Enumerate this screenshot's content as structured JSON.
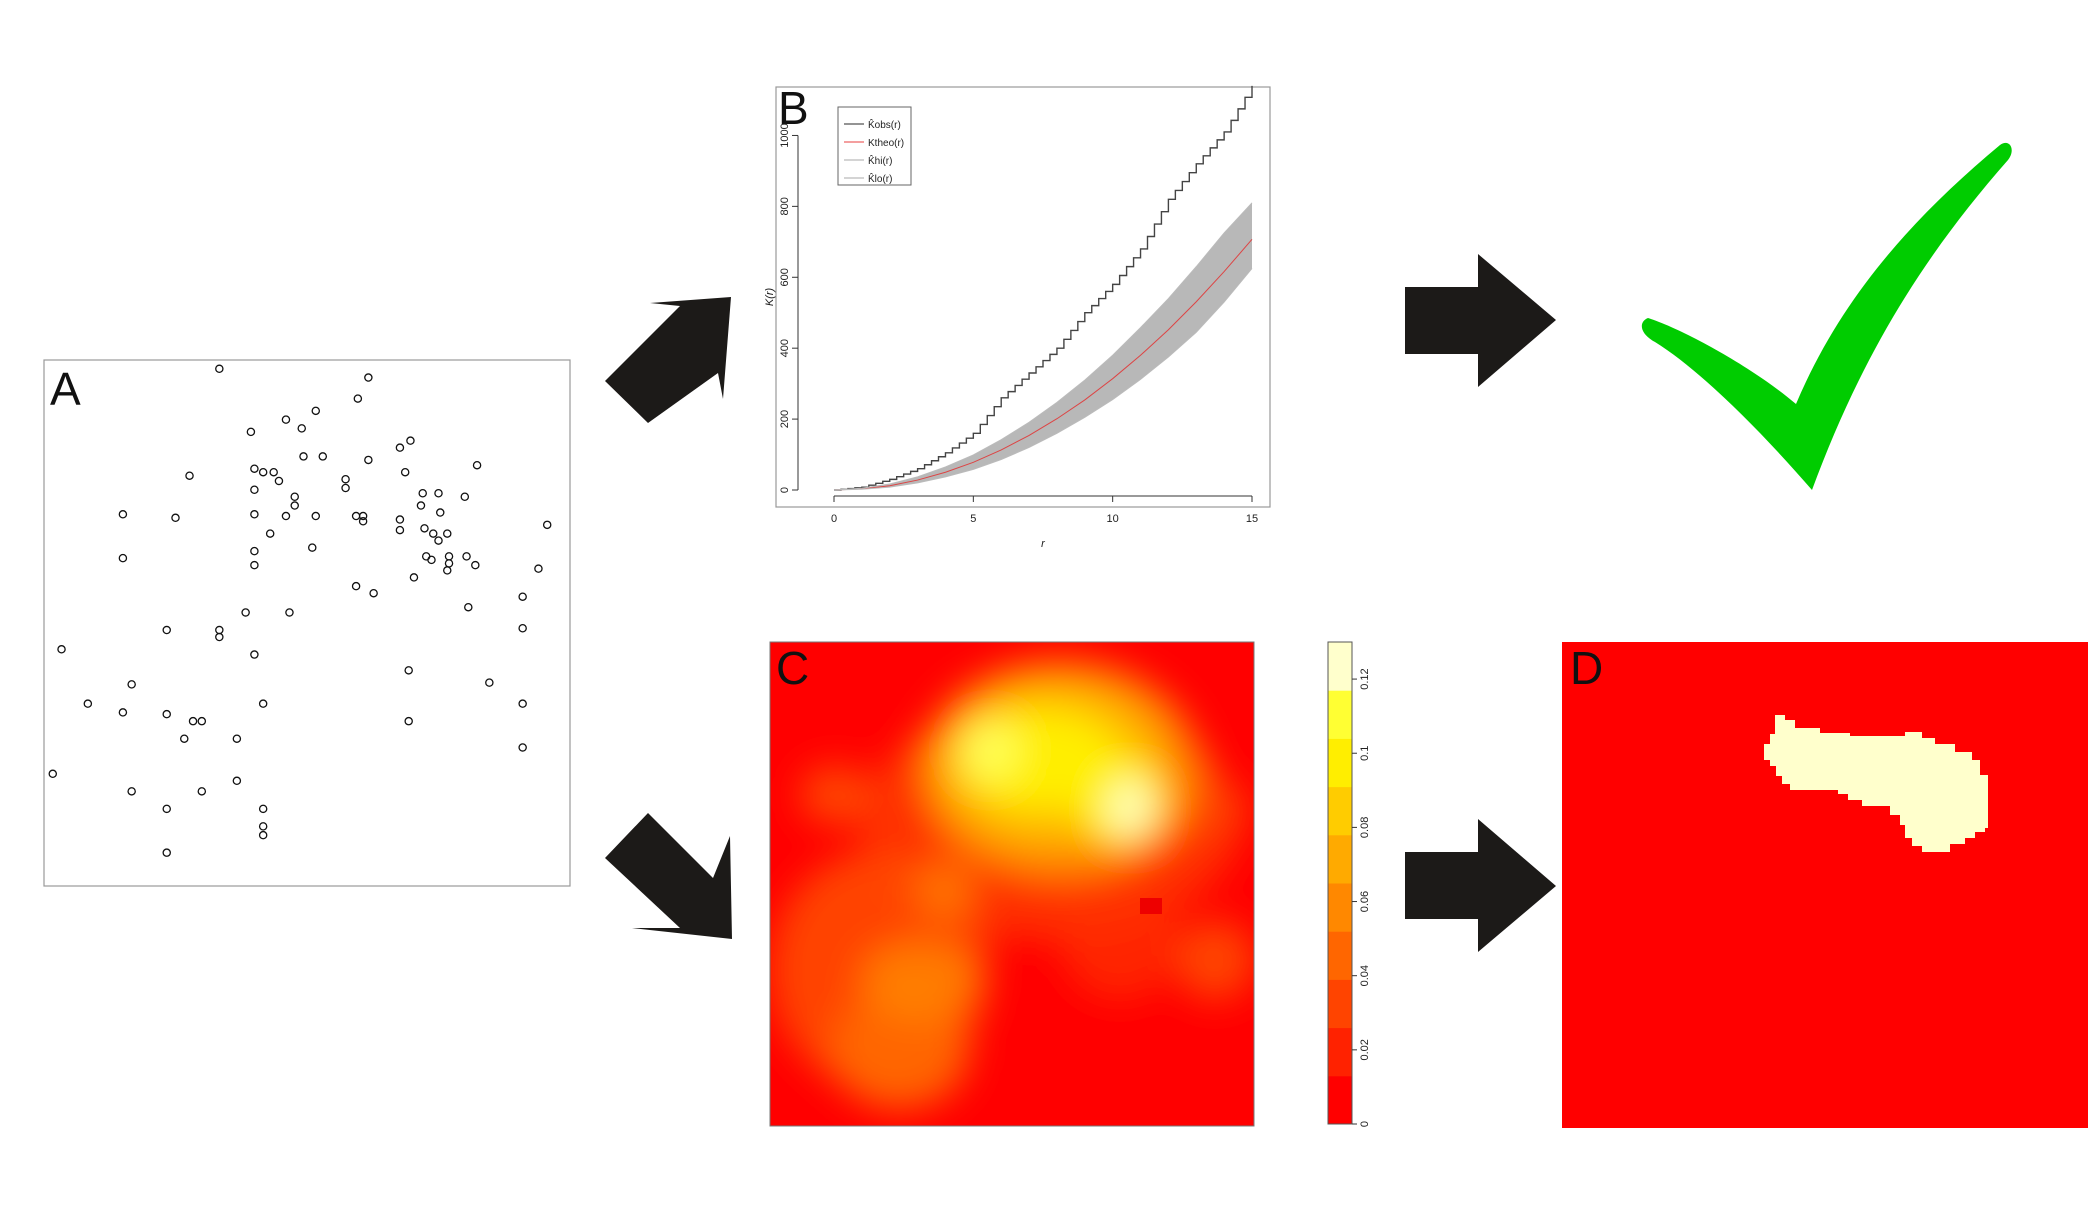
{
  "panels": {
    "a": {
      "letter": "A"
    },
    "b": {
      "letter": "B"
    },
    "c": {
      "letter": "C"
    },
    "d": {
      "letter": "D"
    }
  },
  "points_note": "",
  "chart_data": [
    {
      "type": "scatter",
      "panel": "A",
      "title": "",
      "xlabel": "",
      "ylabel": "",
      "xlim": [
        0,
        30
      ],
      "ylim": [
        0,
        30
      ],
      "grid": false,
      "points": [
        [
          10,
          29.5
        ],
        [
          18.5,
          29
        ],
        [
          17.9,
          27.8
        ],
        [
          15.5,
          27.1
        ],
        [
          13.8,
          26.6
        ],
        [
          14.7,
          26.1
        ],
        [
          11.8,
          25.9
        ],
        [
          20.9,
          25.4
        ],
        [
          20.3,
          25
        ],
        [
          14.8,
          24.5
        ],
        [
          15.9,
          24.5
        ],
        [
          18.5,
          24.3
        ],
        [
          24.7,
          24
        ],
        [
          12,
          23.8
        ],
        [
          12.5,
          23.6
        ],
        [
          13.1,
          23.6
        ],
        [
          20.6,
          23.6
        ],
        [
          13.4,
          23.1
        ],
        [
          17.2,
          23.2
        ],
        [
          17.2,
          22.7
        ],
        [
          12,
          22.6
        ],
        [
          22.5,
          22.4
        ],
        [
          24,
          22.2
        ],
        [
          21.6,
          22.4
        ],
        [
          8.3,
          23.4
        ],
        [
          14.3,
          22.2
        ],
        [
          14.3,
          21.7
        ],
        [
          21.5,
          21.7
        ],
        [
          22.6,
          21.3
        ],
        [
          4.5,
          21.2
        ],
        [
          7.5,
          21.0
        ],
        [
          12,
          21.2
        ],
        [
          13.8,
          21.1
        ],
        [
          15.5,
          21.1
        ],
        [
          17.8,
          21.1
        ],
        [
          18.2,
          21.1
        ],
        [
          18.2,
          20.8
        ],
        [
          20.3,
          20.9
        ],
        [
          20.3,
          20.3
        ],
        [
          21.7,
          20.4
        ],
        [
          22.2,
          20.1
        ],
        [
          23,
          20.1
        ],
        [
          28.7,
          20.6
        ],
        [
          12.9,
          20.1
        ],
        [
          22.5,
          19.7
        ],
        [
          15.3,
          19.3
        ],
        [
          12,
          19.1
        ],
        [
          21.8,
          18.8
        ],
        [
          23.1,
          18.8
        ],
        [
          24.1,
          18.8
        ],
        [
          22.1,
          18.6
        ],
        [
          12,
          18.3
        ],
        [
          23.1,
          18.4
        ],
        [
          4.5,
          18.7
        ],
        [
          23.0,
          18.0
        ],
        [
          24.6,
          18.3
        ],
        [
          28.2,
          18.1
        ],
        [
          21.1,
          17.6
        ],
        [
          17.8,
          17.1
        ],
        [
          18.8,
          16.7
        ],
        [
          27.3,
          16.5
        ],
        [
          11.5,
          15.6
        ],
        [
          14,
          15.6
        ],
        [
          24.2,
          15.9
        ],
        [
          7,
          14.6
        ],
        [
          10,
          14.6
        ],
        [
          10,
          14.2
        ],
        [
          1,
          13.5
        ],
        [
          12,
          13.2
        ],
        [
          27.3,
          14.7
        ],
        [
          20.8,
          12.3
        ],
        [
          25.4,
          11.6
        ],
        [
          5,
          11.5
        ],
        [
          2.5,
          10.4
        ],
        [
          4.5,
          9.9
        ],
        [
          7,
          9.8
        ],
        [
          12.5,
          10.4
        ],
        [
          27.3,
          10.4
        ],
        [
          8.5,
          9.4
        ],
        [
          9,
          9.4
        ],
        [
          20.8,
          9.4
        ],
        [
          8,
          8.4
        ],
        [
          11,
          8.4
        ],
        [
          27.3,
          7.9
        ],
        [
          0.5,
          6.4
        ],
        [
          5,
          5.4
        ],
        [
          9,
          5.4
        ],
        [
          11,
          6
        ],
        [
          7,
          4.4
        ],
        [
          12.5,
          4.4
        ],
        [
          12.5,
          3.4
        ],
        [
          12.5,
          2.9
        ],
        [
          7,
          1.9
        ]
      ]
    },
    {
      "type": "line",
      "panel": "B",
      "title": "",
      "xlabel": "r",
      "ylabel": "K(r)",
      "xlim": [
        0,
        15
      ],
      "ylim": [
        0,
        1100
      ],
      "x_ticks": [
        "0",
        "5",
        "10",
        "15"
      ],
      "y_ticks": [
        "0",
        "200",
        "400",
        "600",
        "800",
        "1000"
      ],
      "legend": {
        "position": "top-left",
        "entries": [
          {
            "label": "K̂obs(r)",
            "color": "#555555"
          },
          {
            "label": "Ktheo(r)",
            "color": "#ee6666"
          },
          {
            "label": "K̂hi(r)",
            "color": "#bbbbbb"
          },
          {
            "label": "K̂lo(r)",
            "color": "#bbbbbb"
          }
        ]
      },
      "x": [
        0,
        1,
        2,
        3,
        4,
        5,
        6,
        7,
        8,
        9,
        10,
        11,
        12,
        13,
        14,
        15
      ],
      "series": [
        {
          "name": "K̂obs(r)",
          "color": "#444444",
          "values": [
            0,
            8,
            30,
            60,
            105,
            160,
            260,
            330,
            400,
            500,
            580,
            680,
            820,
            920,
            1010,
            1140
          ]
        },
        {
          "name": "Ktheo(r)",
          "color": "#dd4444",
          "values": [
            0,
            3,
            12,
            28,
            50,
            78,
            113,
            154,
            201,
            254,
            314,
            380,
            452,
            531,
            616,
            707
          ]
        },
        {
          "name": "K̂hi(r)",
          "color": "#bbbbbb",
          "values": [
            0,
            5,
            17,
            37,
            65,
            99,
            142,
            191,
            247,
            310,
            380,
            458,
            540,
            630,
            725,
            810
          ]
        },
        {
          "name": "K̂lo(r)",
          "color": "#bbbbbb",
          "values": [
            0,
            2,
            8,
            20,
            37,
            58,
            86,
            120,
            160,
            205,
            255,
            312,
            375,
            445,
            530,
            625
          ]
        }
      ]
    },
    {
      "type": "heatmap",
      "panel": "C",
      "title": "",
      "colorbar": {
        "ticks": [
          "0",
          "0.02",
          "0.04",
          "0.06",
          "0.08",
          "0.1",
          "0.12"
        ],
        "range": [
          0,
          0.13
        ],
        "colors": [
          "#ff0000",
          "#ff2200",
          "#ff4400",
          "#ff6600",
          "#ff8800",
          "#ffaa00",
          "#ffcc00",
          "#ffee00",
          "#ffff33",
          "#ffffcc"
        ]
      }
    },
    {
      "type": "heatmap",
      "panel": "D",
      "title": "",
      "colors": {
        "background": "#ff0000",
        "region": "#ffffcc"
      }
    }
  ],
  "checkmark": {
    "icon": "checkmark-icon",
    "color": "#00cc00"
  },
  "arrows": {
    "color": "#1c1a18"
  }
}
